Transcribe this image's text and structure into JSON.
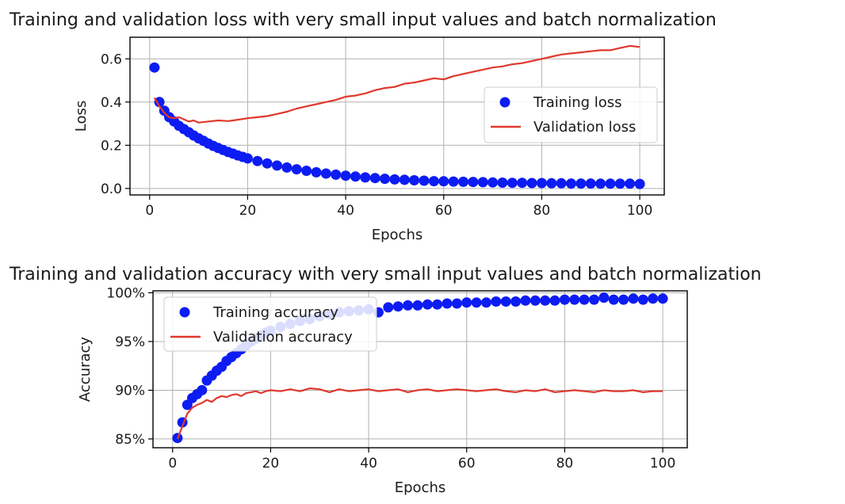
{
  "colors": {
    "training": "#0d1cf2",
    "validation": "#e0392d"
  },
  "chart_data": [
    {
      "type": "scatter+line",
      "title": "Training and validation loss with very small input values and batch normalization",
      "xlabel": "Epochs",
      "ylabel": "Loss",
      "xlim": [
        -4,
        105
      ],
      "ylim": [
        -0.03,
        0.7
      ],
      "xticks": [
        0,
        20,
        40,
        60,
        80,
        100
      ],
      "xtick_labels": [
        "0",
        "20",
        "40",
        "60",
        "80",
        "100"
      ],
      "yticks": [
        0.0,
        0.2,
        0.4,
        0.6
      ],
      "ytick_labels": [
        "0.0",
        "0.2",
        "0.4",
        "0.6"
      ],
      "grid": true,
      "legend": "center-right",
      "series": [
        {
          "name": "Training loss",
          "style": "markers",
          "x": [
            1,
            2,
            3,
            4,
            5,
            6,
            7,
            8,
            9,
            10,
            11,
            12,
            13,
            14,
            15,
            16,
            17,
            18,
            19,
            20,
            22,
            24,
            26,
            28,
            30,
            32,
            34,
            36,
            38,
            40,
            42,
            44,
            46,
            48,
            50,
            52,
            54,
            56,
            58,
            60,
            62,
            64,
            66,
            68,
            70,
            72,
            74,
            76,
            78,
            80,
            82,
            84,
            86,
            88,
            90,
            92,
            94,
            96,
            98,
            100
          ],
          "y": [
            0.56,
            0.4,
            0.36,
            0.33,
            0.31,
            0.29,
            0.275,
            0.26,
            0.245,
            0.232,
            0.22,
            0.208,
            0.197,
            0.187,
            0.178,
            0.169,
            0.161,
            0.153,
            0.146,
            0.139,
            0.127,
            0.116,
            0.106,
            0.097,
            0.089,
            0.082,
            0.075,
            0.069,
            0.064,
            0.059,
            0.055,
            0.051,
            0.048,
            0.045,
            0.042,
            0.04,
            0.038,
            0.036,
            0.034,
            0.033,
            0.032,
            0.031,
            0.03,
            0.029,
            0.028,
            0.027,
            0.026,
            0.026,
            0.025,
            0.025,
            0.024,
            0.024,
            0.023,
            0.023,
            0.023,
            0.022,
            0.022,
            0.022,
            0.022,
            0.021
          ]
        },
        {
          "name": "Validation loss",
          "style": "line",
          "x": [
            1,
            2,
            3,
            4,
            5,
            6,
            7,
            8,
            9,
            10,
            12,
            14,
            16,
            18,
            20,
            22,
            24,
            26,
            28,
            30,
            32,
            34,
            36,
            38,
            40,
            42,
            44,
            46,
            48,
            50,
            52,
            54,
            56,
            58,
            60,
            62,
            64,
            66,
            68,
            70,
            72,
            74,
            76,
            78,
            80,
            82,
            84,
            86,
            88,
            90,
            92,
            94,
            96,
            98,
            100
          ],
          "y": [
            0.42,
            0.38,
            0.35,
            0.33,
            0.325,
            0.33,
            0.32,
            0.31,
            0.315,
            0.305,
            0.31,
            0.315,
            0.312,
            0.318,
            0.325,
            0.33,
            0.335,
            0.345,
            0.355,
            0.37,
            0.38,
            0.39,
            0.4,
            0.41,
            0.425,
            0.43,
            0.44,
            0.455,
            0.465,
            0.47,
            0.485,
            0.49,
            0.5,
            0.51,
            0.505,
            0.52,
            0.53,
            0.54,
            0.55,
            0.56,
            0.565,
            0.575,
            0.58,
            0.59,
            0.6,
            0.61,
            0.62,
            0.625,
            0.63,
            0.635,
            0.64,
            0.64,
            0.65,
            0.66,
            0.655
          ]
        }
      ]
    },
    {
      "type": "scatter+line",
      "title": "Training and validation accuracy with very small input values and batch normalization",
      "xlabel": "Epochs",
      "ylabel": "Accuracy",
      "xlim": [
        -4,
        105
      ],
      "ylim": [
        84.1,
        100.2
      ],
      "xticks": [
        0,
        20,
        40,
        60,
        80,
        100
      ],
      "xtick_labels": [
        "0",
        "20",
        "40",
        "60",
        "80",
        "100"
      ],
      "yticks": [
        85,
        90,
        95,
        100
      ],
      "ytick_labels": [
        "85%",
        "90%",
        "95%",
        "100%"
      ],
      "grid": true,
      "legend": "upper-left",
      "series": [
        {
          "name": "Training accuracy",
          "style": "markers",
          "x": [
            1,
            2,
            3,
            4,
            5,
            6,
            7,
            8,
            9,
            10,
            11,
            12,
            13,
            14,
            15,
            16,
            17,
            18,
            19,
            20,
            22,
            24,
            26,
            28,
            30,
            32,
            34,
            36,
            38,
            40,
            42,
            44,
            46,
            48,
            50,
            52,
            54,
            56,
            58,
            60,
            62,
            64,
            66,
            68,
            70,
            72,
            74,
            76,
            78,
            80,
            82,
            84,
            86,
            88,
            90,
            92,
            94,
            96,
            98,
            100
          ],
          "y": [
            85.1,
            86.7,
            88.5,
            89.2,
            89.6,
            90.0,
            91.0,
            91.5,
            92.0,
            92.4,
            93.0,
            93.4,
            93.8,
            94.2,
            94.6,
            95.0,
            95.3,
            95.6,
            95.9,
            96.1,
            96.5,
            96.8,
            97.1,
            97.3,
            97.6,
            97.8,
            98.0,
            98.1,
            98.2,
            98.3,
            98.0,
            98.5,
            98.6,
            98.7,
            98.7,
            98.8,
            98.8,
            98.9,
            98.9,
            99.0,
            99.0,
            99.0,
            99.1,
            99.1,
            99.1,
            99.2,
            99.2,
            99.2,
            99.2,
            99.3,
            99.3,
            99.3,
            99.3,
            99.5,
            99.3,
            99.3,
            99.4,
            99.3,
            99.4,
            99.4
          ]
        },
        {
          "name": "Validation accuracy",
          "style": "line",
          "x": [
            1,
            2,
            3,
            4,
            5,
            6,
            7,
            8,
            9,
            10,
            11,
            12,
            13,
            14,
            15,
            16,
            17,
            18,
            19,
            20,
            22,
            24,
            26,
            28,
            30,
            32,
            34,
            36,
            38,
            40,
            42,
            44,
            46,
            48,
            50,
            52,
            54,
            56,
            58,
            60,
            62,
            64,
            66,
            68,
            70,
            72,
            74,
            76,
            78,
            80,
            82,
            84,
            86,
            88,
            90,
            92,
            94,
            96,
            98,
            100
          ],
          "y": [
            85.0,
            86.3,
            87.6,
            88.2,
            88.5,
            88.7,
            89.0,
            88.8,
            89.2,
            89.4,
            89.3,
            89.5,
            89.6,
            89.4,
            89.7,
            89.8,
            89.9,
            89.7,
            89.9,
            90.0,
            89.9,
            90.1,
            89.9,
            90.2,
            90.1,
            89.8,
            90.1,
            89.9,
            90.0,
            90.1,
            89.9,
            90.0,
            90.1,
            89.8,
            90.0,
            90.1,
            89.9,
            90.0,
            90.1,
            90.0,
            89.9,
            90.0,
            90.1,
            89.9,
            89.8,
            90.0,
            89.9,
            90.1,
            89.8,
            89.9,
            90.0,
            89.9,
            89.8,
            90.0,
            89.9,
            89.9,
            90.0,
            89.8,
            89.9,
            89.9
          ]
        }
      ]
    }
  ]
}
